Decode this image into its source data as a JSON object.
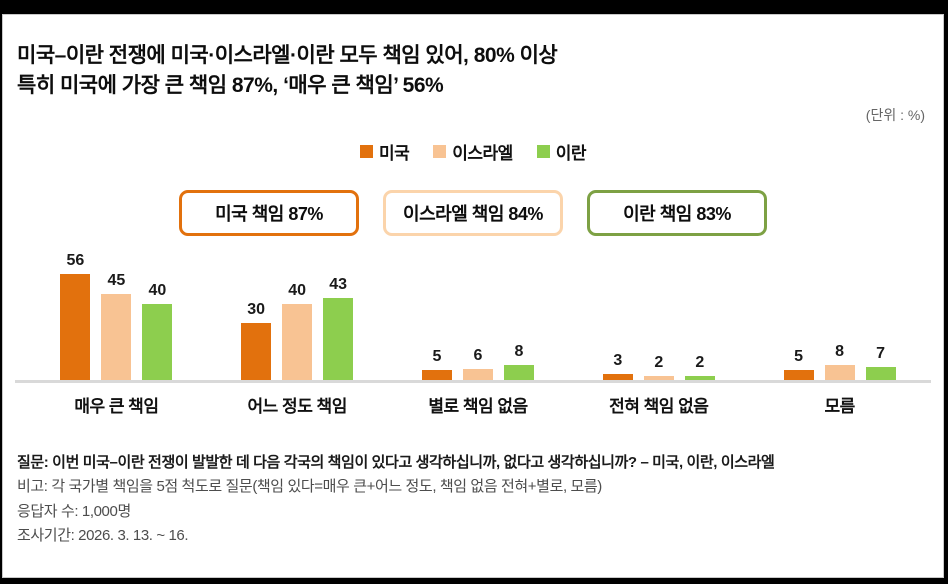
{
  "title": {
    "line1": "미국–이란 전쟁에  미국·이스라엘·이란 모두 책임 있어, 80% 이상",
    "line2": "특히 미국에 가장 큰 책임 87%, ‘매우 큰 책임’ 56%"
  },
  "unit_label": "(단위 : %)",
  "summary_boxes": [
    {
      "label": "미국 책임 87%",
      "border_color": "#e2710d"
    },
    {
      "label": "이스라엘 책임 84%",
      "border_color": "#fbd4ab"
    },
    {
      "label": "이란 책임 83%",
      "border_color": "#7da144"
    }
  ],
  "chart_data": {
    "type": "bar",
    "title": "미국–이란 전쟁 책임 인식",
    "categories": [
      "매우 큰 책임",
      "어느 정도 책임",
      "별로 책임 없음",
      "전혀 책임 없음",
      "모름"
    ],
    "series": [
      {
        "name": "미국",
        "color": "#e2710d",
        "values": [
          56,
          30,
          5,
          3,
          5
        ]
      },
      {
        "name": "이스라엘",
        "color": "#f8c393",
        "values": [
          45,
          40,
          6,
          2,
          8
        ]
      },
      {
        "name": "이란",
        "color": "#8dce4e",
        "values": [
          40,
          43,
          8,
          2,
          7
        ]
      }
    ],
    "ylim": [
      0,
      60
    ],
    "grid": false,
    "value_labels": true,
    "legend_position": "top-center",
    "axis_color": "#d9d9d9"
  },
  "footnotes": {
    "question": "질문: 이번 미국–이란 전쟁이 발발한 데 다음 각국의 책임이 있다고 생각하십니까, 없다고 생각하십니까? – 미국, 이란, 이스라엘",
    "note": "비고: 각 국가별 책임을 5점 척도로 질문(책임 있다=매우 큰+어느 정도, 책임 없음 전혀+별로, 모름)",
    "respondents": "응답자 수: 1,000명",
    "period": "조사기간: 2026. 3. 13. ~ 16."
  }
}
